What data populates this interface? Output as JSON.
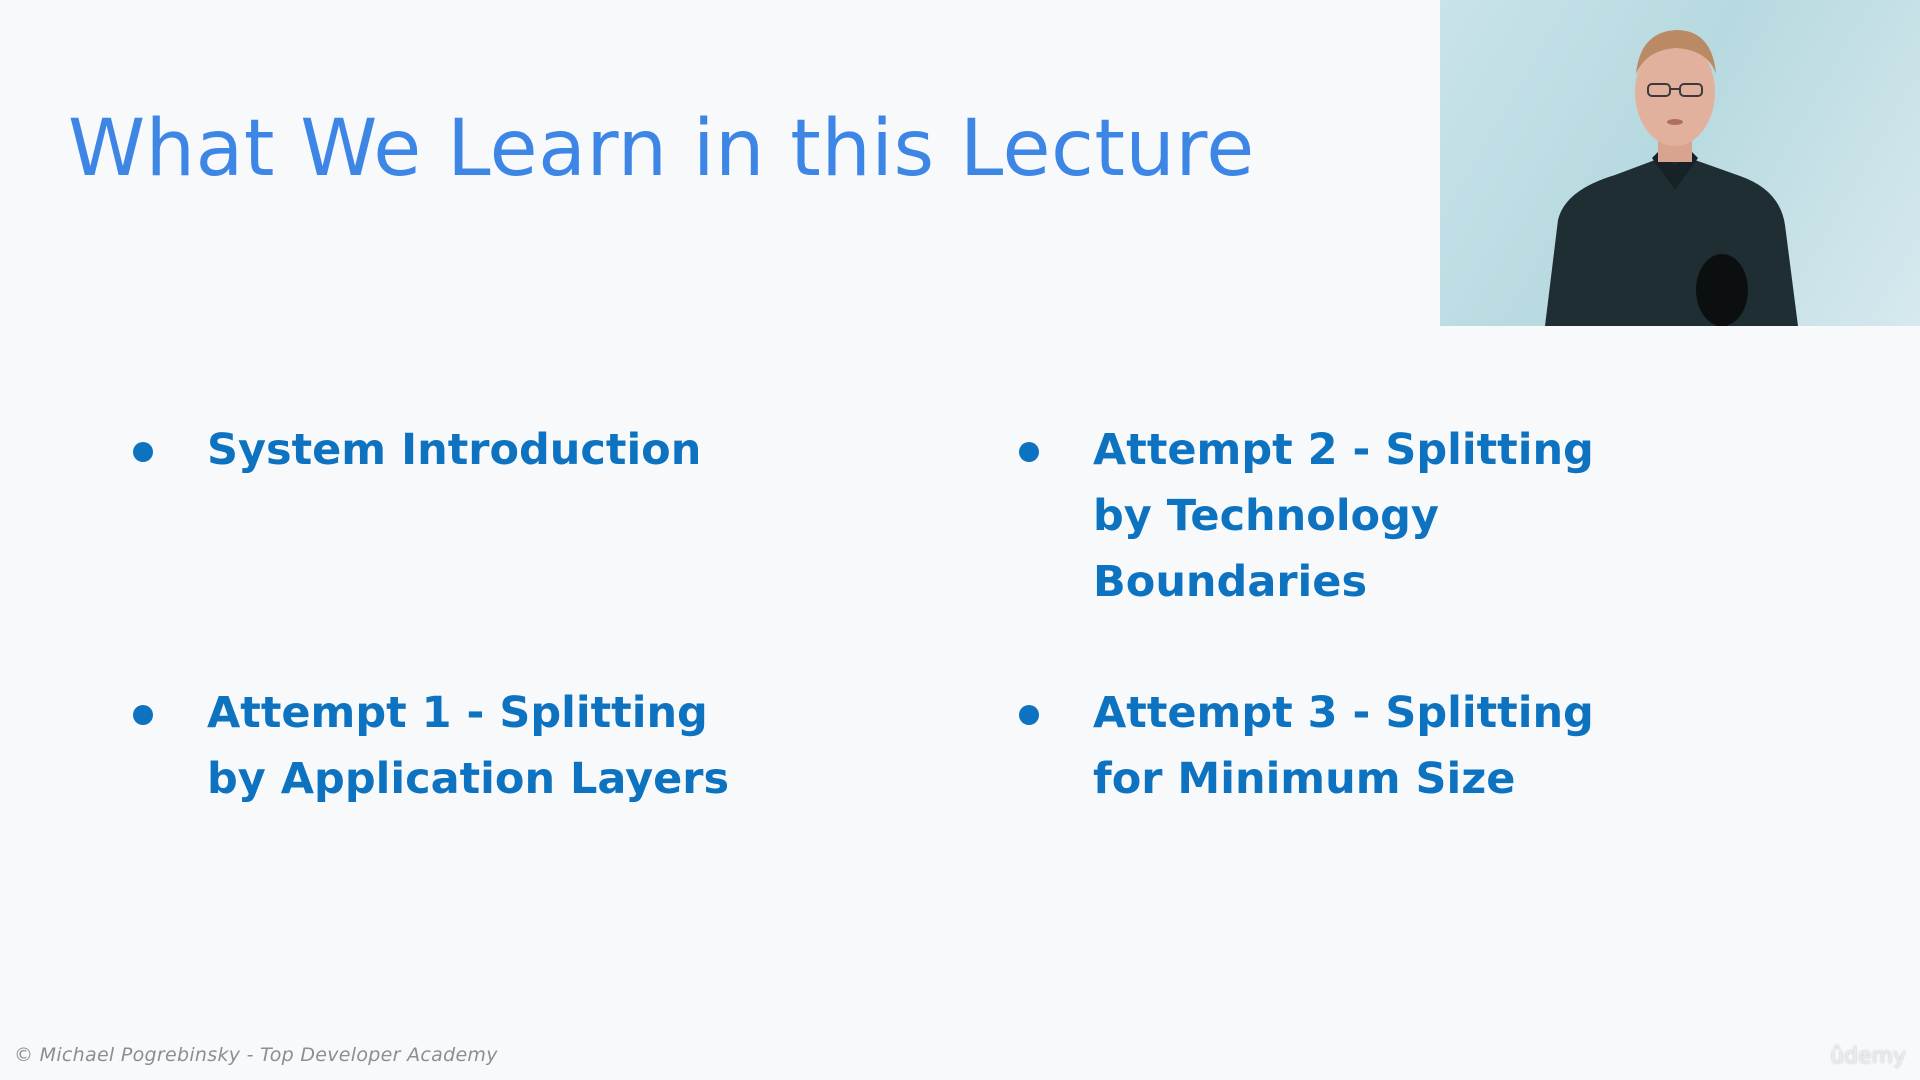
{
  "slide": {
    "title": "What We Learn in this Lecture",
    "bullets": [
      "System Introduction",
      "Attempt 2 - Splitting by Technology Boundaries",
      "Attempt 1 - Splitting by Application Layers",
      "Attempt 3 - Splitting for Minimum Size"
    ],
    "footer": "© Michael Pogrebinsky - Top Developer Academy",
    "watermark": "ûdemy"
  },
  "colors": {
    "title": "#3d86e6",
    "bullet": "#0d72c0",
    "background": "#f8f9fa",
    "footer": "#8b8e92"
  },
  "icons": {
    "bullet": "bullet-dot-icon",
    "presenter": "presenter-video-thumbnail"
  }
}
